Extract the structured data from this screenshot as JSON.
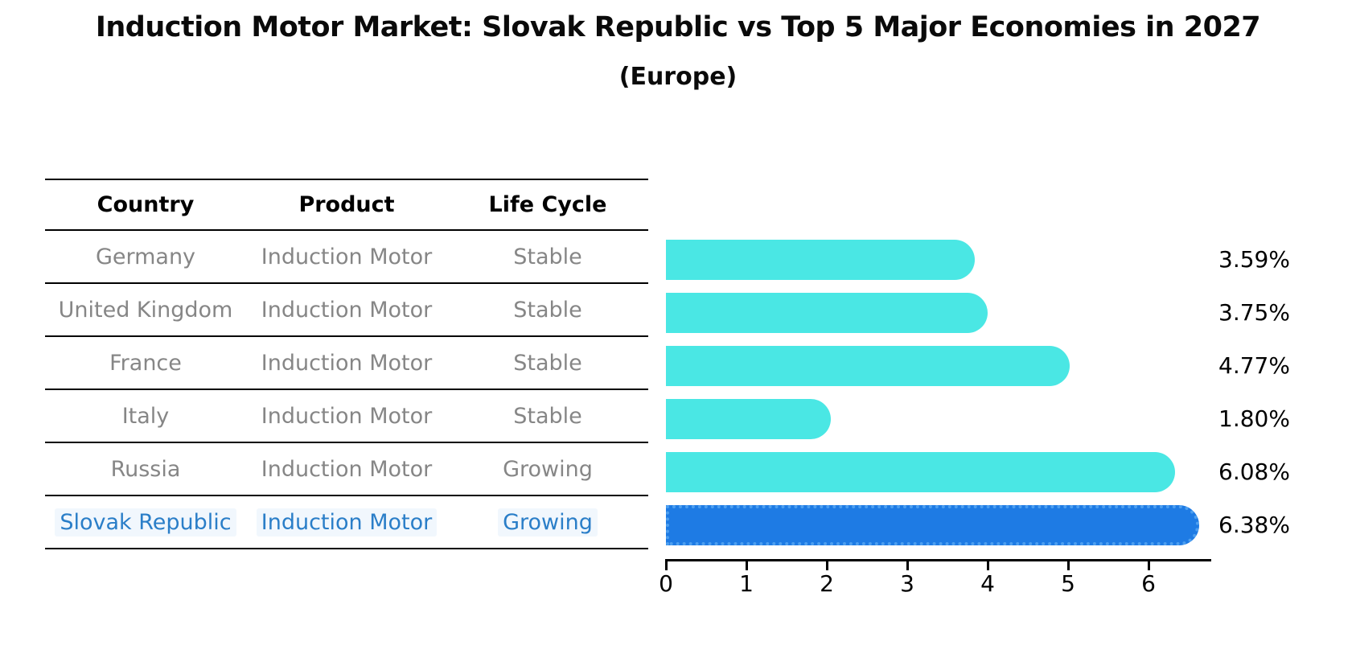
{
  "title": "Induction Motor Market: Slovak Republic vs Top 5 Major Economies in 2027",
  "subtitle": "(Europe)",
  "table": {
    "headers": [
      "Country",
      "Product",
      "Life Cycle"
    ],
    "rows": [
      {
        "country": "Germany",
        "product": "Induction Motor",
        "life_cycle": "Stable",
        "highlight": false
      },
      {
        "country": "United Kingdom",
        "product": "Induction Motor",
        "life_cycle": "Stable",
        "highlight": false
      },
      {
        "country": "France",
        "product": "Induction Motor",
        "life_cycle": "Stable",
        "highlight": false
      },
      {
        "country": "Italy",
        "product": "Induction Motor",
        "life_cycle": "Stable",
        "highlight": false
      },
      {
        "country": "Russia",
        "product": "Induction Motor",
        "life_cycle": "Growing",
        "highlight": false
      },
      {
        "country": "Slovak Republic",
        "product": "Induction Motor",
        "life_cycle": "Growing",
        "highlight": true
      }
    ]
  },
  "chart_data": {
    "type": "bar",
    "orientation": "horizontal",
    "title": "Induction Motor Market: Slovak Republic vs Top 5 Major Economies in 2027",
    "subtitle": "(Europe)",
    "categories": [
      "Germany",
      "United Kingdom",
      "France",
      "Italy",
      "Russia",
      "Slovak Republic"
    ],
    "values": [
      3.59,
      3.75,
      4.77,
      1.8,
      6.08,
      6.38
    ],
    "value_labels": [
      "3.59%",
      "3.75%",
      "4.77%",
      "1.80%",
      "6.08%",
      "6.38%"
    ],
    "unit": "%",
    "x_ticks": [
      0,
      1,
      2,
      3,
      4,
      5,
      6
    ],
    "xlim": [
      0,
      6.78
    ],
    "grid": false,
    "legend": false,
    "highlight_index": 5,
    "colors": {
      "bar_default": "#4AE7E4",
      "bar_highlight": "#1E7BE4",
      "bar_highlight_border": "#4D9FF0",
      "row_text": "#868686",
      "highlight_text": "#2A7EC8",
      "axis": "#000000"
    }
  }
}
